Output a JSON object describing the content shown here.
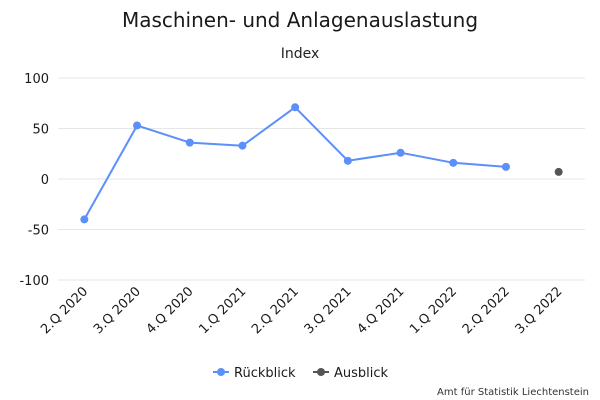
{
  "chart_data": {
    "type": "line",
    "title": "Maschinen- und Anlagenauslastung",
    "subtitle": "Index",
    "categories": [
      "2.Q 2020",
      "3.Q 2020",
      "4.Q 2020",
      "1.Q 2021",
      "2.Q 2021",
      "3.Q 2021",
      "4.Q 2021",
      "1.Q 2022",
      "2.Q 2022",
      "3.Q 2022"
    ],
    "ylim": [
      -100,
      100
    ],
    "yticks": [
      100,
      50,
      0,
      -50,
      -100
    ],
    "grid": true,
    "legend_position": "bottom-center",
    "series": [
      {
        "name": "Rückblick",
        "color": "#5b8ff9",
        "values": [
          -40,
          53,
          36,
          33,
          71,
          18,
          26,
          16,
          12,
          null
        ]
      },
      {
        "name": "Ausblick",
        "color": "#555555",
        "values": [
          null,
          null,
          null,
          null,
          null,
          null,
          null,
          null,
          null,
          7
        ]
      }
    ],
    "credit": "Amt für Statistik Liechtenstein"
  }
}
